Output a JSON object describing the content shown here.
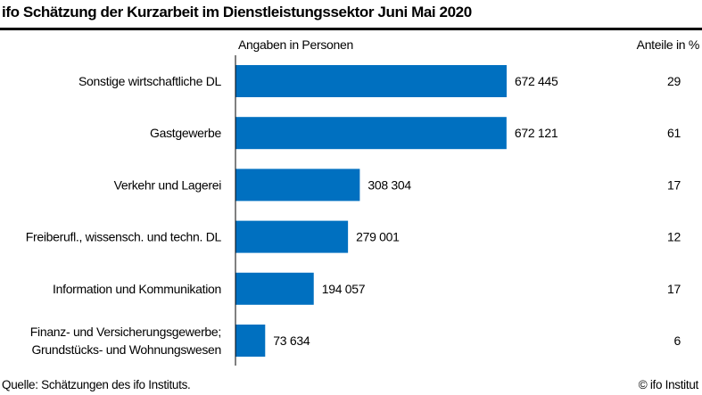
{
  "chart_data": {
    "type": "bar",
    "orientation": "horizontal",
    "title": "ifo Schätzung der Kurzarbeit im Dienstleistungssektor Juni Mai 2020",
    "value_header": "Angaben in Personen",
    "share_header": "Anteile in %",
    "categories": [
      [
        "Sonstige wirtschaftliche DL"
      ],
      [
        "Gastgewerbe"
      ],
      [
        "Verkehr und Lagerei"
      ],
      [
        "Freiberufl., wissensch. und techn. DL"
      ],
      [
        "Information und Kommunikation"
      ],
      [
        "Finanz- und Versicherungsgewerbe;",
        "Grundstücks- und Wohnungswesen"
      ]
    ],
    "values": [
      672445,
      672121,
      308304,
      279001,
      194057,
      73634
    ],
    "value_labels": [
      "672 445",
      "672 121",
      "308 304",
      "279 001",
      "194 057",
      "73 634"
    ],
    "shares": [
      "29",
      "61",
      "17",
      "12",
      "17",
      "6"
    ],
    "bar_color": "#0070C0",
    "grid": false,
    "source": "Quelle: Schätzungen des ifo Instituts.",
    "copyright": "© ifo Institut"
  }
}
